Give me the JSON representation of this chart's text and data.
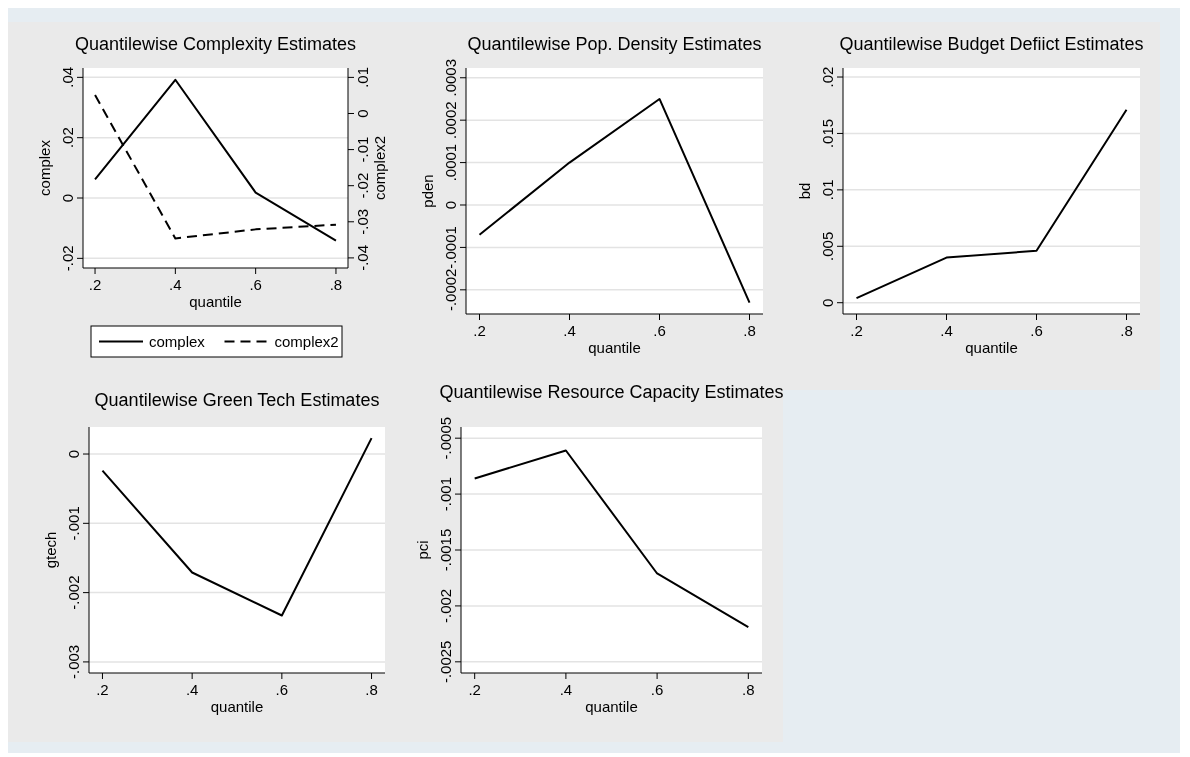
{
  "chart_data": [
    {
      "type": "line",
      "title": "Quantilewise Complexity Estimates",
      "xlabel": "quantile",
      "ylabel": "complex",
      "y2label": "complex2",
      "x": [
        0.2,
        0.4,
        0.6,
        0.8
      ],
      "xlim": [
        0.17,
        0.83
      ],
      "xticks": [
        {
          "value": 0.2,
          "label": ".2"
        },
        {
          "value": 0.4,
          "label": ".4"
        },
        {
          "value": 0.6,
          "label": ".6"
        },
        {
          "value": 0.8,
          "label": ".8"
        }
      ],
      "ylim": [
        -0.0232,
        0.0431
      ],
      "yticks": [
        {
          "value": -0.02,
          "label": "-.02"
        },
        {
          "value": 0,
          "label": "0"
        },
        {
          "value": 0.02,
          "label": ".02"
        },
        {
          "value": 0.04,
          "label": ".04"
        }
      ],
      "y2lim": [
        -0.0428,
        0.0126
      ],
      "y2ticks": [
        {
          "value": -0.04,
          "label": "-.04"
        },
        {
          "value": -0.03,
          "label": "-.03"
        },
        {
          "value": -0.02,
          "label": "-.02"
        },
        {
          "value": -0.01,
          "label": "-.01"
        },
        {
          "value": 0,
          "label": "0"
        },
        {
          "value": 0.01,
          "label": ".01"
        }
      ],
      "grid": "y",
      "legend": "bottom",
      "series": [
        {
          "name": "complex",
          "color": "#000000",
          "line_style": "solid",
          "values": [
            0.0062,
            0.0392,
            0.0018,
            -0.0141
          ]
        },
        {
          "name": "complex2",
          "color": "#000000",
          "line_style": "dashed",
          "axis": "y2",
          "values": [
            0.0051,
            -0.0346,
            -0.0321,
            -0.0308
          ]
        }
      ]
    },
    {
      "type": "line",
      "title": "Quantilewise Pop. Density Estimates",
      "xlabel": "quantile",
      "ylabel": "pden",
      "x": [
        0.2,
        0.4,
        0.6,
        0.8
      ],
      "xlim": [
        0.17,
        0.83
      ],
      "xticks": [
        {
          "value": 0.2,
          "label": ".2"
        },
        {
          "value": 0.4,
          "label": ".4"
        },
        {
          "value": 0.6,
          "label": ".6"
        },
        {
          "value": 0.8,
          "label": ".8"
        }
      ],
      "ylim": [
        -0.000257,
        0.000323
      ],
      "yticks": [
        {
          "value": -0.0002,
          "label": "-.0002"
        },
        {
          "value": -0.0001,
          "label": "-.0001"
        },
        {
          "value": 0,
          "label": "0"
        },
        {
          "value": 0.0001,
          "label": ".0001"
        },
        {
          "value": 0.0002,
          "label": ".0002"
        },
        {
          "value": 0.0003,
          "label": ".0003"
        }
      ],
      "grid": "y",
      "series": [
        {
          "color": "#000000",
          "values": [
            -7e-05,
            0.0001,
            0.00025,
            -0.00023
          ]
        }
      ]
    },
    {
      "type": "line",
      "title": "Quantilewise Budget Defiict Estimates",
      "xlabel": "quantile",
      "ylabel": "bd",
      "x": [
        0.2,
        0.4,
        0.6,
        0.8
      ],
      "xlim": [
        0.17,
        0.83
      ],
      "xticks": [
        {
          "value": 0.2,
          "label": ".2"
        },
        {
          "value": 0.4,
          "label": ".4"
        },
        {
          "value": 0.6,
          "label": ".6"
        },
        {
          "value": 0.8,
          "label": ".8"
        }
      ],
      "ylim": [
        -0.001,
        0.0208
      ],
      "yticks": [
        {
          "value": 0,
          "label": "0"
        },
        {
          "value": 0.005,
          "label": ".005"
        },
        {
          "value": 0.01,
          "label": ".01"
        },
        {
          "value": 0.015,
          "label": ".015"
        },
        {
          "value": 0.02,
          "label": ".02"
        }
      ],
      "grid": "y",
      "series": [
        {
          "color": "#000000",
          "values": [
            0.0004,
            0.004,
            0.0046,
            0.0171
          ]
        }
      ]
    },
    {
      "type": "line",
      "title": "Quantilewise Green Tech Estimates",
      "xlabel": "quantile",
      "ylabel": "gtech",
      "x": [
        0.2,
        0.4,
        0.6,
        0.8
      ],
      "xlim": [
        0.17,
        0.83
      ],
      "xticks": [
        {
          "value": 0.2,
          "label": ".2"
        },
        {
          "value": 0.4,
          "label": ".4"
        },
        {
          "value": 0.6,
          "label": ".6"
        },
        {
          "value": 0.8,
          "label": ".8"
        }
      ],
      "ylim": [
        -0.00316,
        0.00039
      ],
      "yticks": [
        {
          "value": -0.003,
          "label": "-.003"
        },
        {
          "value": -0.002,
          "label": "-.002"
        },
        {
          "value": -0.001,
          "label": "-.001"
        },
        {
          "value": 0,
          "label": "0"
        }
      ],
      "grid": "y",
      "series": [
        {
          "color": "#000000",
          "values": [
            -0.00024,
            -0.00171,
            -0.00233,
            0.00023
          ]
        }
      ]
    },
    {
      "type": "line",
      "title": "Quantilewise Resource Capacity Estimates",
      "xlabel": "quantile",
      "ylabel": "pci",
      "x": [
        0.2,
        0.4,
        0.6,
        0.8
      ],
      "xlim": [
        0.17,
        0.83
      ],
      "xticks": [
        {
          "value": 0.2,
          "label": ".2"
        },
        {
          "value": 0.4,
          "label": ".4"
        },
        {
          "value": 0.6,
          "label": ".6"
        },
        {
          "value": 0.8,
          "label": ".8"
        }
      ],
      "ylim": [
        -0.0026,
        -0.0004
      ],
      "yticks": [
        {
          "value": -0.0025,
          "label": "-.0025"
        },
        {
          "value": -0.002,
          "label": "-.002"
        },
        {
          "value": -0.0015,
          "label": "-.0015"
        },
        {
          "value": -0.001,
          "label": "-.001"
        },
        {
          "value": -0.0005,
          "label": "-.0005"
        }
      ],
      "grid": "y",
      "series": [
        {
          "color": "#000000",
          "values": [
            -0.00086,
            -0.00061,
            -0.00171,
            -0.00219
          ]
        }
      ]
    }
  ]
}
